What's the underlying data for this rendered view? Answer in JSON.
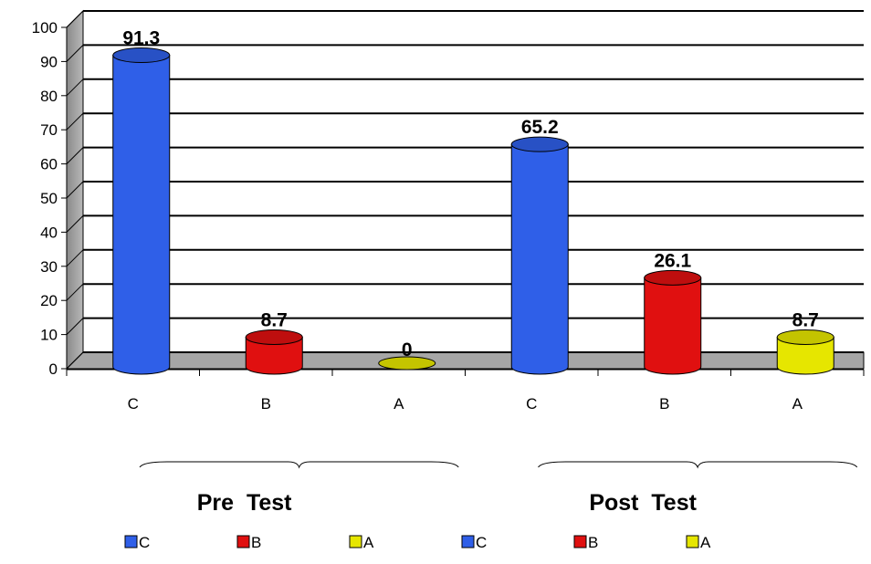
{
  "chart_data": {
    "type": "bar",
    "style": "3d-cylinder",
    "categories": [
      "C",
      "B",
      "A",
      "C",
      "B",
      "A"
    ],
    "values": [
      91.3,
      8.7,
      0,
      65.2,
      26.1,
      8.7
    ],
    "data_labels": [
      "91.3",
      "8.7",
      "0",
      "65.2",
      "26.1",
      "8.7"
    ],
    "bar_colors": [
      "#2f5fe8",
      "#e01010",
      "#e6e600",
      "#2f5fe8",
      "#e01010",
      "#e6e600"
    ],
    "ylim": [
      0,
      100
    ],
    "yticks": [
      0,
      10,
      20,
      30,
      40,
      50,
      60,
      70,
      80,
      90,
      100
    ],
    "grid": true,
    "groups": [
      {
        "label": "Pre  Test",
        "categories": [
          0,
          1,
          2
        ]
      },
      {
        "label": "Post  Test",
        "categories": [
          3,
          4,
          5
        ]
      }
    ],
    "legend": {
      "position": "bottom",
      "entries": [
        {
          "label": "C",
          "color": "#2f5fe8"
        },
        {
          "label": "B",
          "color": "#e01010"
        },
        {
          "label": "A",
          "color": "#e6e600"
        },
        {
          "label": "C",
          "color": "#2f5fe8"
        },
        {
          "label": "B",
          "color": "#e01010"
        },
        {
          "label": "A",
          "color": "#e6e600"
        }
      ]
    }
  }
}
